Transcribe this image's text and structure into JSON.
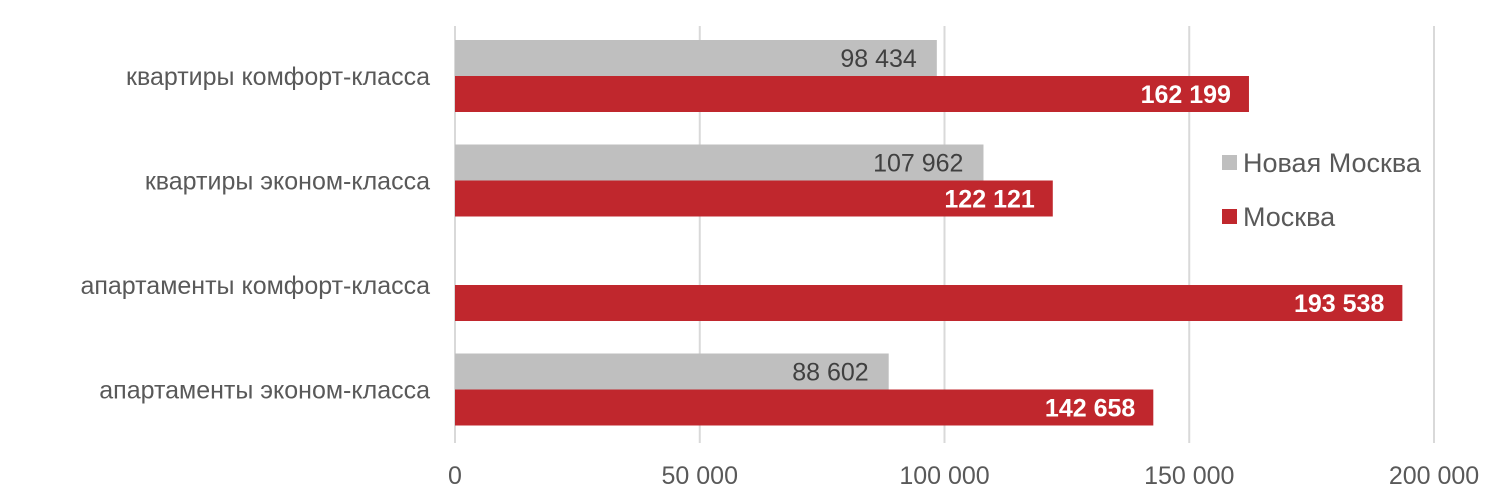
{
  "chart_data": {
    "type": "bar",
    "orientation": "horizontal",
    "categories": [
      "квартиры комфорт-класса",
      "квартиры эконом-класса",
      "апартаменты комфорт-класса",
      "апартаменты эконом-класса"
    ],
    "series": [
      {
        "name": "Новая Москва",
        "values": [
          98434,
          107962,
          null,
          88602
        ],
        "labels": [
          "98 434",
          "107 962",
          "",
          "88 602"
        ],
        "color": "#bfbfbf",
        "label_color": "#404040"
      },
      {
        "name": "Москва",
        "values": [
          162199,
          122121,
          193538,
          142658
        ],
        "labels": [
          "162 199",
          "122 121",
          "193 538",
          "142 658"
        ],
        "color": "#c0272d",
        "label_color": "#ffffff"
      }
    ],
    "xlim": [
      0,
      200000
    ],
    "x_ticks": [
      0,
      50000,
      100000,
      150000,
      200000
    ],
    "x_tick_labels": [
      "0",
      "50 000",
      "100 000",
      "150 000",
      "200 000"
    ],
    "grid": true,
    "legend_position": "right",
    "title": "",
    "xlabel": "",
    "ylabel": ""
  }
}
